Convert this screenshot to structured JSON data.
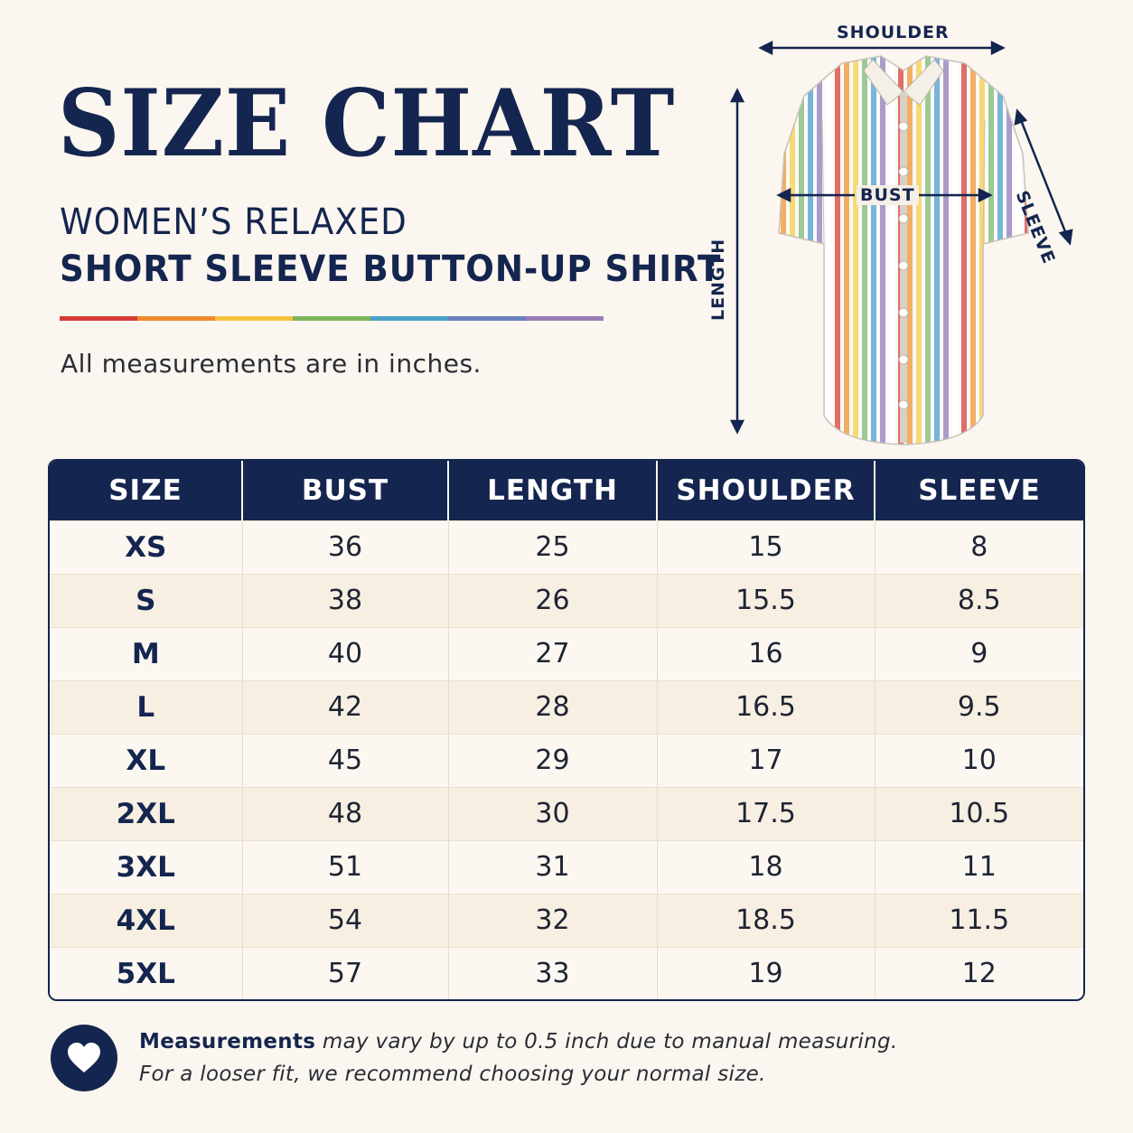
{
  "header": {
    "title": "SIZE CHART",
    "subtitle_line1": "WOMEN’S RELAXED",
    "subtitle_line2": "SHORT SLEEVE BUTTON-UP SHIRT",
    "unit_note": "All measurements are in inches."
  },
  "rainbow_colors": [
    "#d63a35",
    "#ef8a2c",
    "#f2c23c",
    "#7bb55a",
    "#4a9fc8",
    "#6a7fc0",
    "#9a7cb6"
  ],
  "diagram": {
    "shoulder_label": "SHOULDER",
    "bust_label": "BUST",
    "sleeve_label": "SLEEVE",
    "length_label": "LENGTH",
    "stripe_colors": [
      "#d9534f",
      "#f0a04b",
      "#f4d35e",
      "#8cc084",
      "#5fa8d3",
      "#9b8ac4",
      "#ffffff"
    ]
  },
  "table": {
    "headers": [
      "SIZE",
      "BUST",
      "LENGTH",
      "SHOULDER",
      "SLEEVE"
    ],
    "rows": [
      [
        "XS",
        "36",
        "25",
        "15",
        "8"
      ],
      [
        "S",
        "38",
        "26",
        "15.5",
        "8.5"
      ],
      [
        "M",
        "40",
        "27",
        "16",
        "9"
      ],
      [
        "L",
        "42",
        "28",
        "16.5",
        "9.5"
      ],
      [
        "XL",
        "45",
        "29",
        "17",
        "10"
      ],
      [
        "2XL",
        "48",
        "30",
        "17.5",
        "10.5"
      ],
      [
        "3XL",
        "51",
        "31",
        "18",
        "11"
      ],
      [
        "4XL",
        "54",
        "32",
        "18.5",
        "11.5"
      ],
      [
        "5XL",
        "57",
        "33",
        "19",
        "12"
      ]
    ]
  },
  "footer": {
    "bold": "Measurements",
    "line1_rest": " may vary by up to 0.5 inch due to manual measuring.",
    "line2": "For a looser fit, we recommend choosing your normal size.",
    "icon": "heart-icon"
  },
  "colors": {
    "navy": "#14254f",
    "background": "#fbf6ef"
  }
}
